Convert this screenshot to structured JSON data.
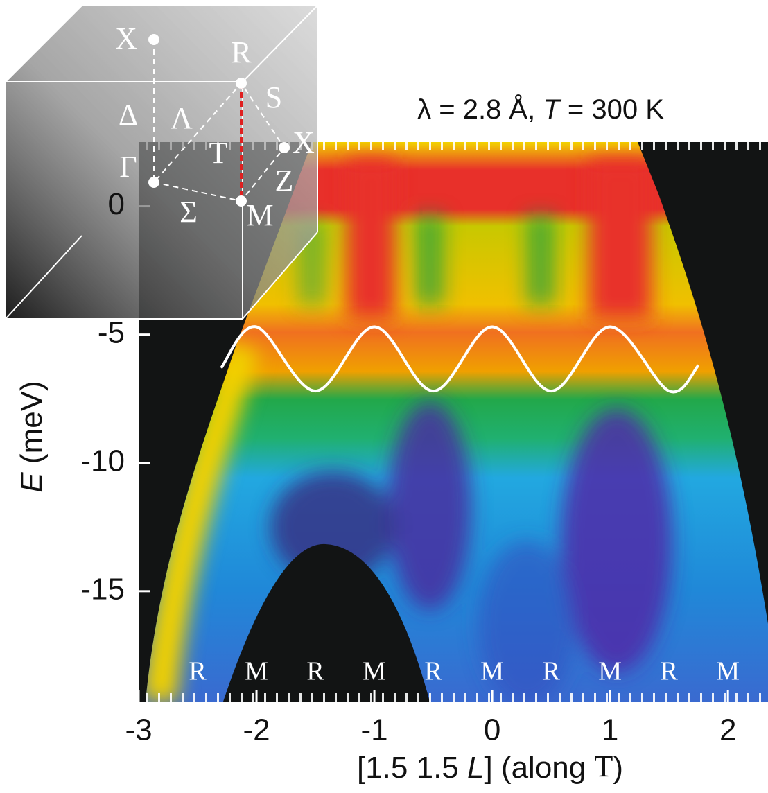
{
  "chart_data": {
    "type": "heatmap",
    "title_parts": [
      "λ = 2.8 Å,  ",
      "T",
      " = 300 K"
    ],
    "x_label_parts": [
      "[1.5 1.5 ",
      "L",
      "] (along ",
      "T",
      ")"
    ],
    "y_label_parts": [
      "E",
      " (meV)"
    ],
    "xlim": [
      -3,
      2.34
    ],
    "ylim": [
      -19.3,
      2.5
    ],
    "xticks": [
      -3,
      -2,
      -1,
      0,
      1,
      2
    ],
    "yticks": [
      0,
      -5,
      -10,
      -15
    ],
    "point_labels": [
      {
        "x": -2.5,
        "label": "R"
      },
      {
        "x": -2,
        "label": "M"
      },
      {
        "x": -1.5,
        "label": "R"
      },
      {
        "x": -1,
        "label": "M"
      },
      {
        "x": -0.5,
        "label": "R"
      },
      {
        "x": 0,
        "label": "M"
      },
      {
        "x": 0.5,
        "label": "R"
      },
      {
        "x": 1,
        "label": "M"
      },
      {
        "x": 1.5,
        "label": "R"
      },
      {
        "x": 2,
        "label": "M"
      }
    ],
    "curve": {
      "color": "#ffffff",
      "x": [
        -2.3,
        -2,
        -1.5,
        -1,
        -0.5,
        0,
        0.5,
        1,
        1.5,
        1.75
      ],
      "values": [
        -6.3,
        -4.7,
        -7.2,
        -4.7,
        -7.2,
        -4.7,
        -7.2,
        -4.7,
        -7.2,
        -6.2
      ]
    }
  },
  "inset": {
    "labels": [
      "X",
      "R",
      "S",
      "X",
      "Δ",
      "Λ",
      "T",
      "Γ",
      "Z",
      "Σ",
      "M"
    ]
  }
}
